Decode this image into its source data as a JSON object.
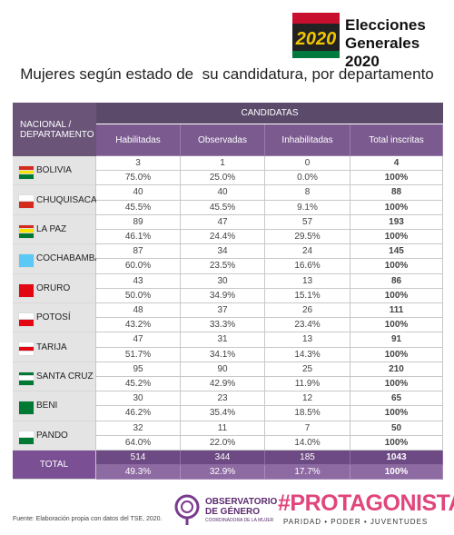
{
  "header": {
    "logo_number": "2020",
    "logo_line1": "Elecciones",
    "logo_line2": "Generales 2020"
  },
  "title": "Mujeres según estado de  su candidatura, por departamento",
  "table": {
    "first_column_header": "NACIONAL / DEPARTAMENTO",
    "group_header": "CANDIDATAS",
    "columns": [
      "Habilitadas",
      "Observadas",
      "Inhabilitadas",
      "Total inscritas"
    ],
    "rows": [
      {
        "name": "BOLIVIA",
        "counts": [
          3,
          1,
          0,
          4
        ],
        "percents": [
          "75.0%",
          "25.0%",
          "0.0%",
          "100%"
        ]
      },
      {
        "name": "CHUQUISACA",
        "counts": [
          40,
          40,
          8,
          88
        ],
        "percents": [
          "45.5%",
          "45.5%",
          "9.1%",
          "100%"
        ]
      },
      {
        "name": "LA PAZ",
        "counts": [
          89,
          47,
          57,
          193
        ],
        "percents": [
          "46.1%",
          "24.4%",
          "29.5%",
          "100%"
        ]
      },
      {
        "name": "COCHABAMBA",
        "counts": [
          87,
          34,
          24,
          145
        ],
        "percents": [
          "60.0%",
          "23.5%",
          "16.6%",
          "100%"
        ]
      },
      {
        "name": "ORURO",
        "counts": [
          43,
          30,
          13,
          86
        ],
        "percents": [
          "50.0%",
          "34.9%",
          "15.1%",
          "100%"
        ]
      },
      {
        "name": "POTOSÍ",
        "counts": [
          48,
          37,
          26,
          111
        ],
        "percents": [
          "43.2%",
          "33.3%",
          "23.4%",
          "100%"
        ]
      },
      {
        "name": "TARIJA",
        "counts": [
          47,
          31,
          13,
          91
        ],
        "percents": [
          "51.7%",
          "34.1%",
          "14.3%",
          "100%"
        ]
      },
      {
        "name": "SANTA CRUZ",
        "counts": [
          95,
          90,
          25,
          210
        ],
        "percents": [
          "45.2%",
          "42.9%",
          "11.9%",
          "100%"
        ]
      },
      {
        "name": "BENI",
        "counts": [
          30,
          23,
          12,
          65
        ],
        "percents": [
          "46.2%",
          "35.4%",
          "18.5%",
          "100%"
        ]
      },
      {
        "name": "PANDO",
        "counts": [
          32,
          11,
          7,
          50
        ],
        "percents": [
          "64.0%",
          "22.0%",
          "14.0%",
          "100%"
        ]
      }
    ],
    "total": {
      "name": "TOTAL",
      "counts": [
        514,
        344,
        185,
        1043
      ],
      "percents": [
        "49.3%",
        "32.9%",
        "17.7%",
        "100%"
      ]
    }
  },
  "footer": {
    "source": "Fuente: Elaboración propia con datos del TSE, 2020.",
    "org1_line1": "OBSERVATORIO",
    "org1_line2": "DE GÉNERO",
    "org1_line3": "COORDINADORA DE LA MUJER",
    "org2_title": "#PROTAGONISTAS",
    "org2_tagline": "PARIDAD • PODER • JUVENTUDES"
  }
}
